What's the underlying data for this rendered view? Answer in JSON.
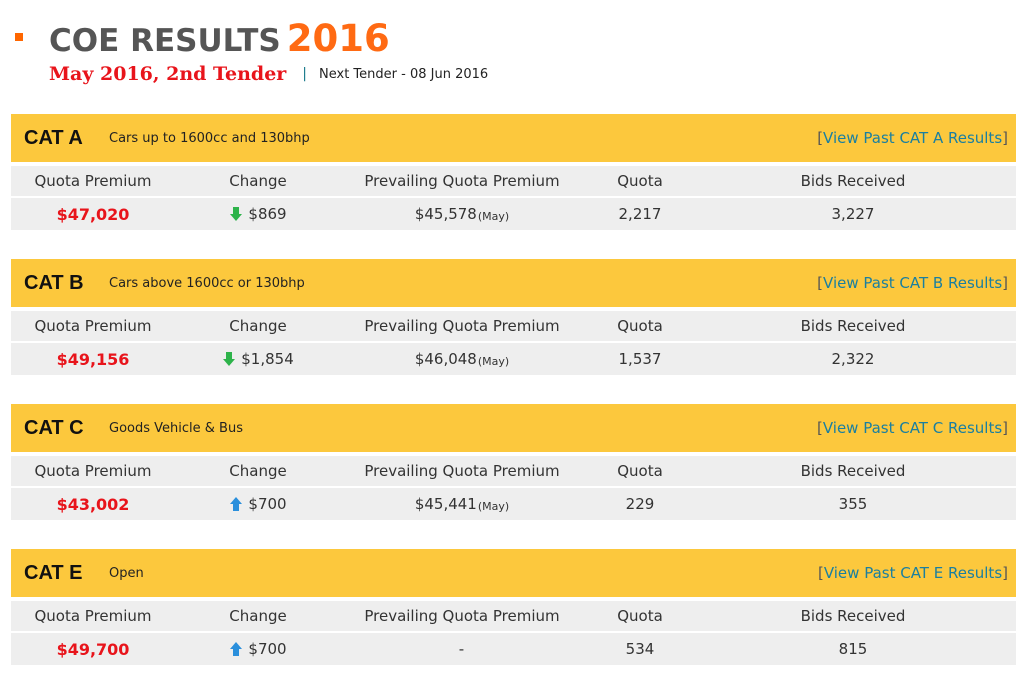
{
  "header": {
    "title": "COE RESULTS",
    "year": "2016",
    "tender": "May 2016, 2nd Tender",
    "separator": "|",
    "next_tender": "Next Tender - 08 Jun 2016"
  },
  "columns": [
    "Quota Premium",
    "Change",
    "Prevailing Quota Premium",
    "Quota",
    "Bids Received"
  ],
  "colors": {
    "accent": "#fcc83d",
    "premium": "#e8141b",
    "down": "#2db34a",
    "up": "#2a8fdc"
  },
  "categories": [
    {
      "name": "CAT A",
      "description": "Cars up to 1600cc and 130bhp",
      "link_open": "[",
      "link": "View Past CAT A Results",
      "link_close": "]",
      "quota_premium": "$47,020",
      "change_direction": "down",
      "change_icon": "arrow-down-icon",
      "change": "$869",
      "prevailing": "$45,578",
      "prevailing_note": "(May)",
      "quota": "2,217",
      "bids": "3,227"
    },
    {
      "name": "CAT B",
      "description": "Cars above 1600cc or 130bhp",
      "link_open": "[",
      "link": "View Past CAT B Results",
      "link_close": "]",
      "quota_premium": "$49,156",
      "change_direction": "down",
      "change_icon": "arrow-down-icon",
      "change": "$1,854",
      "prevailing": "$46,048",
      "prevailing_note": "(May)",
      "quota": "1,537",
      "bids": "2,322"
    },
    {
      "name": "CAT C",
      "description": "Goods Vehicle & Bus",
      "link_open": "[",
      "link": "View Past CAT C Results",
      "link_close": "]",
      "quota_premium": "$43,002",
      "change_direction": "up",
      "change_icon": "arrow-up-icon",
      "change": "$700",
      "prevailing": "$45,441",
      "prevailing_note": "(May)",
      "quota": "229",
      "bids": "355"
    },
    {
      "name": "CAT E",
      "description": "Open",
      "link_open": "[",
      "link": "View Past CAT E Results",
      "link_close": "]",
      "quota_premium": "$49,700",
      "change_direction": "up",
      "change_icon": "arrow-up-icon",
      "change": "$700",
      "prevailing": "-",
      "prevailing_note": "",
      "quota": "534",
      "bids": "815"
    }
  ]
}
